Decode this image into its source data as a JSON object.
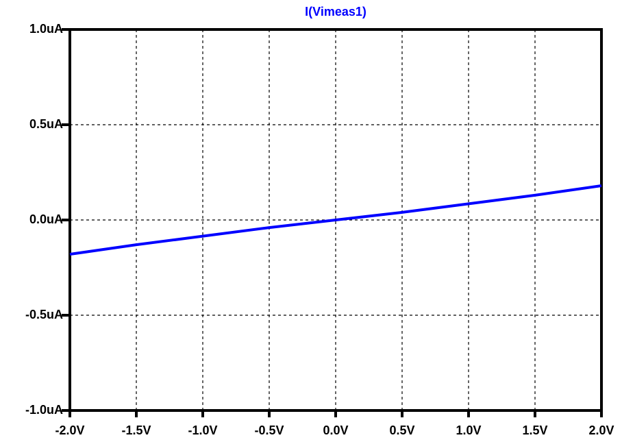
{
  "chart_data": {
    "type": "line",
    "title": "I(Vimeas1)",
    "x": [
      -2.0,
      -1.5,
      -1.0,
      -0.5,
      0.0,
      0.5,
      1.0,
      1.5,
      2.0
    ],
    "series": [
      {
        "name": "I(Vimeas1)",
        "color": "#0000ff",
        "values": [
          -0.18,
          -0.13,
          -0.085,
          -0.04,
          0.0,
          0.04,
          0.085,
          0.13,
          0.18
        ]
      }
    ],
    "xlim": [
      -2.0,
      2.0
    ],
    "xticks": [
      {
        "value": -2.0,
        "label": "-2.0V"
      },
      {
        "value": -1.5,
        "label": "-1.5V"
      },
      {
        "value": -1.0,
        "label": "-1.0V"
      },
      {
        "value": -0.5,
        "label": "-0.5V"
      },
      {
        "value": 0.0,
        "label": "0.0V"
      },
      {
        "value": 0.5,
        "label": "0.5V"
      },
      {
        "value": 1.0,
        "label": "1.0V"
      },
      {
        "value": 1.5,
        "label": "1.5V"
      },
      {
        "value": 2.0,
        "label": "2.0V"
      }
    ],
    "ylim": [
      -1.0,
      1.0
    ],
    "yticks": [
      {
        "value": -1.0,
        "label": "-1.0uA"
      },
      {
        "value": -0.5,
        "label": "-0.5uA"
      },
      {
        "value": 0.0,
        "label": "0.0uA"
      },
      {
        "value": 0.5,
        "label": "0.5uA"
      },
      {
        "value": 1.0,
        "label": "1.0uA"
      }
    ],
    "grid": true
  }
}
